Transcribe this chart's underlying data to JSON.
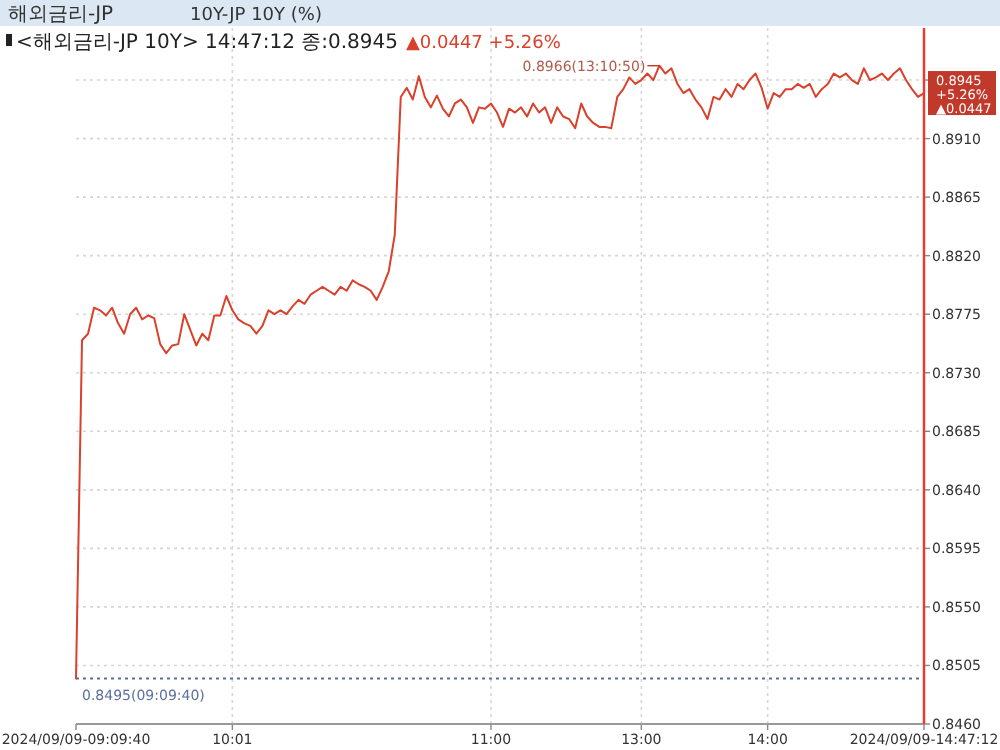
{
  "chart_data": {
    "type": "line",
    "title": "해외금리-JP",
    "subtitle": "10Y-JP 10Y (%)",
    "categories": [
      "2024/09/09-09:09:40",
      null,
      null,
      null,
      null,
      null,
      null,
      null,
      null,
      null,
      null,
      null,
      null,
      null,
      null,
      null,
      null,
      null,
      null,
      null,
      null,
      null,
      null,
      null,
      null,
      null,
      "10:01",
      null,
      null,
      null,
      null,
      null,
      null,
      null,
      null,
      null,
      null,
      null,
      null,
      null,
      null,
      null,
      null,
      null,
      null,
      null,
      null,
      null,
      null,
      null,
      null,
      null,
      null,
      null,
      null,
      null,
      null,
      null,
      null,
      null,
      null,
      null,
      null,
      null,
      null,
      null,
      null,
      null,
      null,
      "11:00",
      null,
      null,
      null,
      null,
      null,
      null,
      null,
      null,
      null,
      null,
      null,
      null,
      null,
      null,
      null,
      null,
      null,
      null,
      null,
      null,
      null,
      null,
      null,
      null,
      "13:00",
      null,
      null,
      null,
      null,
      null,
      null,
      null,
      null,
      null,
      null,
      null,
      null,
      null,
      null,
      null,
      null,
      null,
      null,
      null,
      null,
      "14:00",
      null,
      null,
      null,
      null,
      null,
      null,
      null,
      null,
      null,
      null,
      null,
      null,
      null,
      null,
      null,
      null,
      null,
      null,
      null,
      null,
      null,
      null,
      null,
      null,
      null,
      "2024/09/09-14:47:12"
    ],
    "series": [
      {
        "color": "#d9412b",
        "values": [
          0.8495,
          0.8755,
          0.876,
          0.878,
          0.8778,
          0.8774,
          0.878,
          0.8768,
          0.876,
          0.8775,
          0.878,
          0.8771,
          0.8774,
          0.8772,
          0.8752,
          0.8745,
          0.8751,
          0.8752,
          0.8775,
          0.8763,
          0.8751,
          0.876,
          0.8755,
          0.8774,
          0.8774,
          0.8789,
          0.8778,
          0.8771,
          0.8768,
          0.8766,
          0.876,
          0.8766,
          0.8778,
          0.8775,
          0.8778,
          0.8775,
          0.8781,
          0.8786,
          0.8783,
          0.879,
          0.8793,
          0.8796,
          0.8793,
          0.879,
          0.8796,
          0.8793,
          0.8801,
          0.8798,
          0.8796,
          0.8793,
          0.8786,
          0.8796,
          0.8808,
          0.8836,
          0.8942,
          0.8949,
          0.894,
          0.8958,
          0.8942,
          0.8934,
          0.8943,
          0.8933,
          0.8927,
          0.8937,
          0.894,
          0.8934,
          0.8922,
          0.8934,
          0.8933,
          0.8937,
          0.893,
          0.8919,
          0.8933,
          0.893,
          0.8934,
          0.8927,
          0.8937,
          0.893,
          0.8934,
          0.8922,
          0.8934,
          0.8927,
          0.8925,
          0.8918,
          0.8937,
          0.8927,
          0.8922,
          0.8919,
          0.8919,
          0.8918,
          0.8942,
          0.8948,
          0.8957,
          0.8952,
          0.8955,
          0.896,
          0.8955,
          0.8966,
          0.896,
          0.8964,
          0.8952,
          0.8945,
          0.8948,
          0.894,
          0.8934,
          0.8925,
          0.8942,
          0.894,
          0.8948,
          0.8942,
          0.8952,
          0.8948,
          0.8955,
          0.896,
          0.8949,
          0.8933,
          0.8945,
          0.8942,
          0.8948,
          0.8948,
          0.8952,
          0.8949,
          0.8952,
          0.8942,
          0.8948,
          0.8952,
          0.896,
          0.8957,
          0.896,
          0.8955,
          0.8952,
          0.8964,
          0.8955,
          0.8957,
          0.896,
          0.8955,
          0.896,
          0.8964,
          0.8955,
          0.8948,
          0.8942,
          0.8945
        ]
      }
    ],
    "ylim": [
      0.846,
      0.8995
    ],
    "yticks": [
      {
        "value": 0.846,
        "label": "0.8460"
      },
      0.8505,
      {
        "value": 0.855,
        "label": "0.8550"
      },
      0.8595,
      {
        "value": 0.864,
        "label": "0.8640"
      },
      0.8685,
      {
        "value": 0.873,
        "label": "0.8730"
      },
      0.8775,
      {
        "value": 0.882,
        "label": "0.8820"
      },
      0.8865,
      {
        "value": 0.891,
        "label": "0.8910"
      },
      {
        "value": 0.8955,
        "label": null
      }
    ],
    "grid": true,
    "ref_lines": [
      {
        "axis": "y",
        "value": 0.8495,
        "color": "#5b6f9e",
        "line_style": "dotted"
      }
    ],
    "annotations": [
      "<해외금리-JP 10Y> 14:47:12 종:0.8945",
      "▲0.0447 +5.26%",
      "0.8966(13:10:50)",
      {
        "text": "0.8495(09:09:40)",
        "x": "2024/09/09-09:09:40",
        "y": 0.8495
      },
      {
        "text": "0.8945 +5.26% ▲0.0447",
        "x": "2024/09/09-14:47:12",
        "y": 0.8945
      }
    ]
  }
}
